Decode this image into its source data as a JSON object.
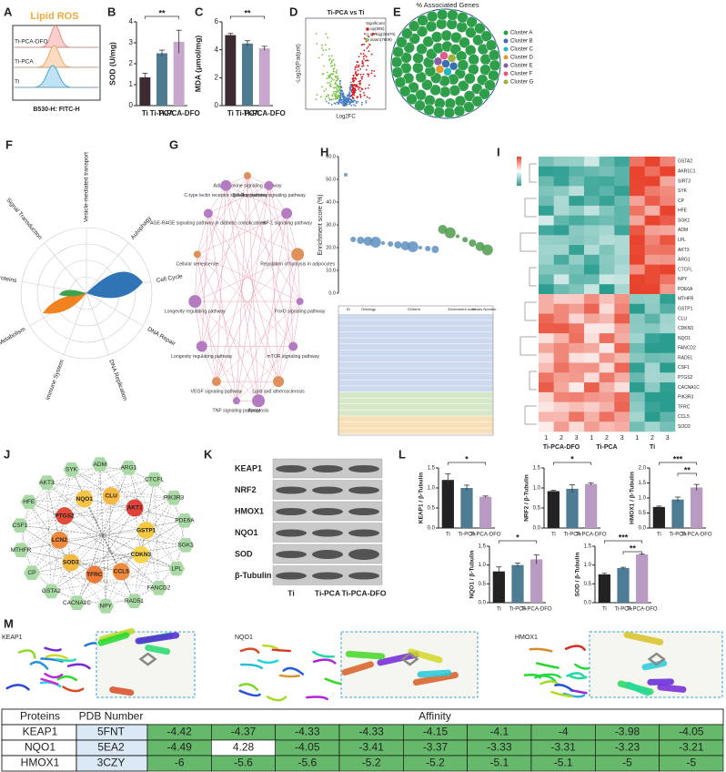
{
  "panel_labels": [
    "A",
    "B",
    "C",
    "D",
    "E",
    "F",
    "G",
    "H",
    "I",
    "J",
    "K",
    "L",
    "M"
  ],
  "lipid_ros": {
    "title": "Lipid ROS",
    "tracks": [
      "Ti-PCA-DFO",
      "Ti-PCA",
      "Ti"
    ],
    "xlabel": "B530-H: FITC-H"
  },
  "chart_data": [
    {
      "type": "bar",
      "ylabel": "SOD (U/mg)",
      "categories": [
        "Ti",
        "Ti-PCA",
        "Ti-PCA-DFO"
      ],
      "values": [
        1.35,
        2.5,
        3.05
      ],
      "errors": [
        0.2,
        0.15,
        0.55
      ],
      "colors": [
        "#3d2b34",
        "#4f7b90",
        "#c7a8cc"
      ],
      "ylim": [
        0,
        4
      ],
      "yticks": [
        0,
        1,
        2,
        3,
        4
      ],
      "annotations": [
        "**"
      ]
    },
    {
      "type": "bar",
      "ylabel": "MDA (μmol/mg)",
      "categories": [
        "Ti",
        "Ti-PCA",
        "Ti-PCA-DFO"
      ],
      "values": [
        5.05,
        4.45,
        4.1
      ],
      "errors": [
        0.12,
        0.2,
        0.15
      ],
      "colors": [
        "#3d2b34",
        "#4f7b90",
        "#c7a8cc"
      ],
      "ylim": [
        0,
        6
      ],
      "yticks": [
        0,
        2,
        4,
        6
      ],
      "annotations": [
        "**"
      ]
    },
    {
      "type": "bar",
      "ylabel": "KEAP1 / β-Tubulin",
      "categories": [
        "Ti",
        "Ti-PCA",
        "Ti-PCA-DFO"
      ],
      "values": [
        1.2,
        1.0,
        0.78
      ],
      "errors": [
        0.15,
        0.07,
        0.02
      ],
      "colors": [
        "#222222",
        "#4f7c95",
        "#b89ac2"
      ],
      "ylim": [
        0,
        1.5
      ],
      "yticks": [
        {
          "value": 0,
          "label": "0.0"
        },
        0.5,
        {
          "value": 1,
          "label": "1.0"
        },
        1.5
      ],
      "annotations": [
        "*"
      ]
    },
    {
      "type": "bar",
      "ylabel": "NRF2 / β-Tubulin",
      "categories": [
        "Ti",
        "Ti-PCA",
        "Ti-PCA-DFO"
      ],
      "values": [
        0.92,
        0.98,
        1.1
      ],
      "errors": [
        0.02,
        0.1,
        0.03
      ],
      "colors": [
        "#222222",
        "#4f7c95",
        "#b89ac2"
      ],
      "ylim": [
        0,
        1.5
      ],
      "yticks": [
        {
          "value": 0,
          "label": "0.0"
        },
        0.5,
        {
          "value": 1,
          "label": "1.0"
        },
        1.5
      ],
      "annotations": [
        "*"
      ]
    },
    {
      "type": "bar",
      "ylabel": "HMOX1 / β-Tubulin",
      "categories": [
        "Ti",
        "Ti-PCA",
        "Ti-PCA-DFO"
      ],
      "values": [
        0.7,
        0.95,
        1.35
      ],
      "errors": [
        0.03,
        0.08,
        0.1
      ],
      "colors": [
        "#222222",
        "#4f7c95",
        "#b89ac2"
      ],
      "ylim": [
        0,
        2
      ],
      "yticks": [
        {
          "value": 0,
          "label": "0.0"
        },
        0.5,
        {
          "value": 1,
          "label": "1.0"
        },
        1.5,
        {
          "value": 2,
          "label": "2.0"
        }
      ],
      "annotations": [
        "***",
        "**"
      ]
    },
    {
      "type": "bar",
      "ylabel": "NQO1 / β-Tubulin",
      "categories": [
        "Ti",
        "Ti-PCA",
        "Ti-PCA-DFO"
      ],
      "values": [
        0.83,
        1.0,
        1.15
      ],
      "errors": [
        0.12,
        0.05,
        0.12
      ],
      "colors": [
        "#222222",
        "#4f7c95",
        "#b89ac2"
      ],
      "ylim": [
        0,
        1.5
      ],
      "yticks": [
        {
          "value": 0,
          "label": "0.0"
        },
        0.5,
        {
          "value": 1,
          "label": "1.0"
        },
        1.5
      ],
      "annotations": [
        "*"
      ]
    },
    {
      "type": "bar",
      "ylabel": "SOD / β-Tubulin",
      "categories": [
        "Ti",
        "Ti-PCA",
        "Ti-PCA-DFO"
      ],
      "values": [
        0.75,
        0.92,
        1.28
      ],
      "errors": [
        0.03,
        0.02,
        0.01
      ],
      "colors": [
        "#222222",
        "#4f7c95",
        "#b89ac2"
      ],
      "ylim": [
        0,
        1.5
      ],
      "yticks": [
        {
          "value": 0,
          "label": "0.0"
        },
        0.5,
        {
          "value": 1,
          "label": "1.0"
        },
        1.5
      ],
      "annotations": [
        "***",
        "**"
      ]
    }
  ],
  "volcano": {
    "title": "Ti-PCA vs Ti",
    "xlabel": "Log2FC",
    "ylabel": "-Log10(P.adjust)",
    "legend_title": "Significant",
    "legend": [
      "up(855)",
      "no sig(26870)",
      "down(7609)"
    ],
    "colors": [
      "#d7191c",
      "#bdbdbd",
      "#7cc242"
    ]
  },
  "associated_genes": {
    "title": "% Associated Genes",
    "clusters": [
      "Cluster A",
      "Cluster B",
      "Cluster C",
      "Cluster D",
      "Cluster E",
      "Cluster F",
      "Cluster G"
    ],
    "colors": [
      "#2e9e4a",
      "#3a6fb5",
      "#27b5c2",
      "#e59a2c",
      "#8b5aa8",
      "#e05b8d",
      "#9bb13a"
    ]
  },
  "reactome": {
    "categories": [
      "Signal Transduction",
      "Vesicle-mediated transport",
      "Autophagy",
      "Cell Cycle",
      "DNA Repair",
      "DNA Replication",
      "Immune System",
      "Metabolism",
      "Metabolism of proteins"
    ]
  },
  "kegg_network": {
    "nodes": [
      "Adipocytokine signaling pathway",
      "Toll-like receptor signaling pathway",
      "HIF-1 signaling pathway",
      "Regulation of lipolysis in adipocytes",
      "FoxO signaling pathway",
      "mTOR signaling pathway",
      "Lipid and atherosclerosis",
      "Apoptosis",
      "TNF signaling pathway",
      "VEGF signaling pathway",
      "Longevity regulating pathway",
      "Longevity regulating pathway",
      "Cellular senescence",
      "AGE-RAGE signaling pathway in diabetic complications",
      "C-type lectin receptor signaling pathway"
    ]
  },
  "enrichment": {
    "ylabel": "Enrichment score (%)",
    "ylim": [
      0,
      60
    ],
    "yticks": [
      {
        "value": 0,
        "label": "0.0"
      },
      {
        "value": 10,
        "label": "10.0"
      },
      {
        "value": 20,
        "label": "20.0"
      },
      {
        "value": 30,
        "label": "30.0"
      },
      {
        "value": 40,
        "label": "40.0"
      },
      {
        "value": 50,
        "label": "50.0"
      },
      {
        "value": 60,
        "label": "60.0"
      }
    ],
    "table_header": [
      "ID",
      "Ontology",
      "GOterm",
      "Enrichment score",
      "Genes Number"
    ]
  },
  "heatmap": {
    "groups": [
      "Ti-PCA-DFO",
      "Ti-PCA",
      "Ti"
    ],
    "replicates": [
      "1",
      "2",
      "3"
    ],
    "genes": [
      "GSTA2",
      "AKR1C1",
      "SIRT3",
      "SYK",
      "CP",
      "HFE",
      "SGK1",
      "ADM",
      "LPL",
      "AKT3",
      "ARG1",
      "CTCFL",
      "NPY",
      "PDE6A",
      "MTHFR",
      "GSTP1",
      "CLU",
      "CDKN3",
      "NQO1",
      "FANCD2",
      "RAD51",
      "CSF1",
      "PTGS2",
      "CACNA1C",
      "PIK3R3",
      "TFRC",
      "CCL5",
      "SOD3"
    ]
  },
  "ppi": {
    "nodes": [
      {
        "name": "SYK",
        "color": "#a9d9a4"
      },
      {
        "name": "ADM",
        "color": "#a9d9a4"
      },
      {
        "name": "ARG1",
        "color": "#a9d9a4"
      },
      {
        "name": "CTCFL",
        "color": "#a9d9a4"
      },
      {
        "name": "PIK3R3",
        "color": "#a9d9a4"
      },
      {
        "name": "PDE6A",
        "color": "#a9d9a4"
      },
      {
        "name": "SGK1",
        "color": "#a9d9a4"
      },
      {
        "name": "LPL",
        "color": "#a9d9a4"
      },
      {
        "name": "FANCD2",
        "color": "#a9d9a4"
      },
      {
        "name": "RAD51",
        "color": "#a9d9a4"
      },
      {
        "name": "NPY",
        "color": "#a9d9a4"
      },
      {
        "name": "CACNA1C",
        "color": "#a9d9a4"
      },
      {
        "name": "GSTA2",
        "color": "#a9d9a4"
      },
      {
        "name": "CP",
        "color": "#a9d9a4"
      },
      {
        "name": "MTHFR",
        "color": "#a9d9a4"
      },
      {
        "name": "CSF1",
        "color": "#a9d9a4"
      },
      {
        "name": "HFE",
        "color": "#a9d9a4"
      },
      {
        "name": "AKT3",
        "color": "#a9d9a4"
      }
    ],
    "hubs": [
      {
        "name": "NQO1",
        "color": "#f6c545"
      },
      {
        "name": "CLU",
        "color": "#f5b942"
      },
      {
        "name": "AKT1",
        "color": "#e0413a"
      },
      {
        "name": "GSTP1",
        "color": "#f5c842"
      },
      {
        "name": "CDKN3",
        "color": "#f7d44a"
      },
      {
        "name": "CCL5",
        "color": "#ef8a3c"
      },
      {
        "name": "TFRC",
        "color": "#ef7a36"
      },
      {
        "name": "SOD3",
        "color": "#f5b942"
      },
      {
        "name": "LCN2",
        "color": "#ef8a3c"
      },
      {
        "name": "PTGS2",
        "color": "#e24b3a"
      }
    ]
  },
  "western_blot": {
    "proteins": [
      "KEAP1",
      "NRF2",
      "HMOX1",
      "NQO1",
      "SOD",
      "β-Tubulin"
    ],
    "groups": [
      "Ti",
      "Ti-PCA",
      "Ti-PCA-DFO"
    ]
  },
  "docking": {
    "proteins": [
      "KEAP1",
      "NQO1",
      "HMOX1"
    ]
  },
  "affinity_table": {
    "headers": [
      "Proteins",
      "PDB Number",
      "Affinity"
    ],
    "rows": [
      {
        "protein": "KEAP1",
        "pdb": "5FNT",
        "values": [
          -4.42,
          -4.37,
          -4.33,
          -4.33,
          -4.15,
          -4.1,
          -4,
          -3.98,
          -4.05
        ]
      },
      {
        "protein": "NQO1",
        "pdb": "5EA2",
        "values": [
          -4.49,
          4.28,
          -4.05,
          -3.41,
          -3.37,
          -3.33,
          -3.31,
          -3.23,
          -3.21
        ]
      },
      {
        "protein": "HMOX1",
        "pdb": "3CZY",
        "values": [
          -6,
          -5.6,
          -5.6,
          -5.2,
          -5.2,
          -5.1,
          -5.1,
          -5,
          -5
        ]
      }
    ]
  }
}
